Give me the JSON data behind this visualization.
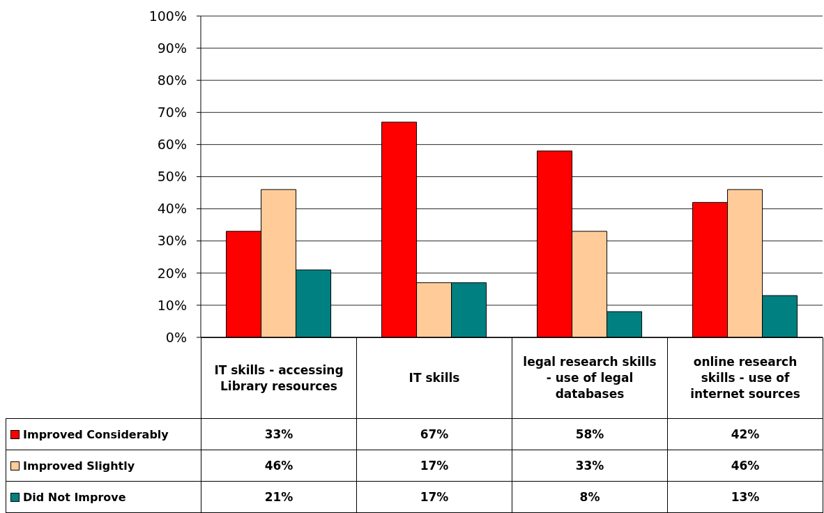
{
  "chart_data": {
    "type": "bar",
    "categories": [
      "IT skills - accessing Library resources",
      "IT skills",
      "legal research skills - use of legal databases",
      "online research skills - use of internet sources"
    ],
    "series": [
      {
        "name": "Improved Considerably",
        "color": "#ff0000",
        "values": [
          33,
          67,
          58,
          42
        ],
        "value_labels": [
          "33%",
          "67%",
          "58%",
          "42%"
        ]
      },
      {
        "name": "Improved Slightly",
        "color": "#ffcc99",
        "values": [
          46,
          17,
          33,
          46
        ],
        "value_labels": [
          "46%",
          "17%",
          "33%",
          "46%"
        ]
      },
      {
        "name": "Did Not Improve",
        "color": "#008080",
        "values": [
          21,
          17,
          8,
          13
        ],
        "value_labels": [
          "21%",
          "17%",
          "8%",
          "13%"
        ]
      }
    ],
    "ylim": [
      0,
      100
    ],
    "yticks": [
      {
        "value": 0,
        "label": "0%"
      },
      {
        "value": 10,
        "label": "10%"
      },
      {
        "value": 20,
        "label": "20%"
      },
      {
        "value": 30,
        "label": "30%"
      },
      {
        "value": 40,
        "label": "40%"
      },
      {
        "value": 50,
        "label": "50%"
      },
      {
        "value": 60,
        "label": "60%"
      },
      {
        "value": 70,
        "label": "70%"
      },
      {
        "value": 80,
        "label": "80%"
      },
      {
        "value": 90,
        "label": "90%"
      },
      {
        "value": 100,
        "label": "100%"
      }
    ],
    "grid": "y",
    "legend": "bottom"
  }
}
